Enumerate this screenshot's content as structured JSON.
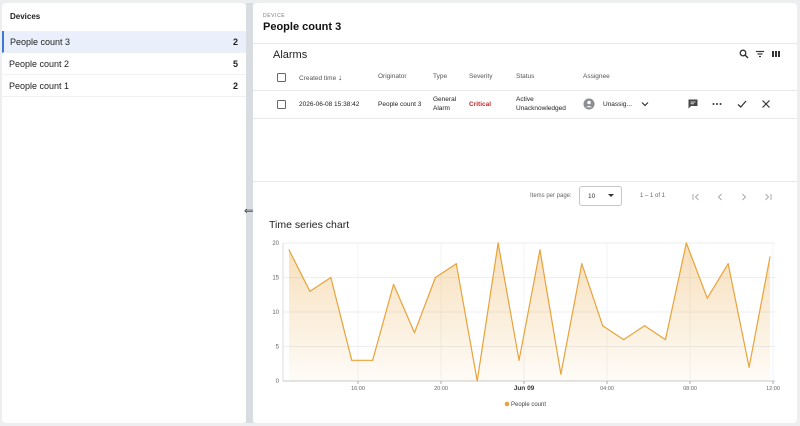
{
  "sidebar": {
    "title": "Devices",
    "items": [
      {
        "label": "People count 3",
        "count": "2",
        "selected": true
      },
      {
        "label": "People count 2",
        "count": "5",
        "selected": false
      },
      {
        "label": "People count 1",
        "count": "2",
        "selected": false
      }
    ]
  },
  "device": {
    "label": "DEVICE",
    "name": "People count 3"
  },
  "alarms": {
    "title": "Alarms",
    "toolbar_icons": [
      "search-icon",
      "filter-icon",
      "columns-icon"
    ],
    "columns": {
      "created": "Created time",
      "originator": "Originator",
      "type": "Type",
      "severity": "Severity",
      "status": "Status",
      "assignee": "Assignee"
    },
    "rows": [
      {
        "created": "2026-06-08 15:38:42",
        "originator": "People count 3",
        "type_line1": "General",
        "type_line2": "Alarm",
        "severity": "Critical",
        "status_line1": "Active",
        "status_line2": "Unacknowledged",
        "assignee": "Unassig..."
      }
    ],
    "pagination": {
      "items_per_page_label": "Items per page:",
      "page_size": "10",
      "range": "1 – 1 of 1"
    }
  },
  "colors": {
    "accent": "#3d78d8",
    "critical": "#c62828",
    "series": "#e8a33a"
  },
  "chart_data": {
    "type": "area",
    "title": "Time series chart",
    "x_tick_labels": [
      "16:00",
      "20:00",
      "Jun 09",
      "04:00",
      "08:00",
      "12:00"
    ],
    "y_ticks": [
      0,
      5,
      10,
      15,
      20
    ],
    "ylim": [
      0,
      20
    ],
    "legend": "bottom",
    "grid": true,
    "series": [
      {
        "name": "People count",
        "values": [
          19,
          13,
          15,
          3,
          3,
          14,
          7,
          15,
          17,
          0,
          20,
          3,
          19,
          1,
          17,
          8,
          6,
          8,
          6,
          20,
          12,
          17,
          2,
          18
        ]
      }
    ]
  }
}
